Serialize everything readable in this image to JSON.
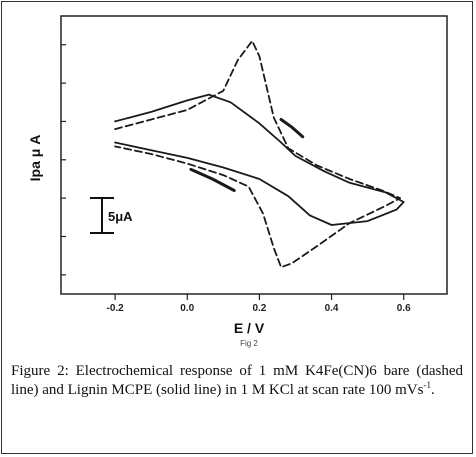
{
  "chart_data": {
    "type": "line",
    "xlabel": "E / V",
    "ylabel": "Ipa μ A",
    "xlim": [
      -0.35,
      0.72
    ],
    "x_ticks": [
      "-0.2",
      "0.0",
      "0.2",
      "0.4",
      "0.6"
    ],
    "x_tick_values": [
      -0.2,
      0.0,
      0.2,
      0.4,
      0.6
    ],
    "scale_bar_label": "5μA",
    "panel_label": "Fig 2",
    "series": [
      {
        "style": "dashed",
        "color": "#1a1a1a",
        "points": [
          [
            -0.2,
            5.6
          ],
          [
            -0.1,
            6.1
          ],
          [
            0.0,
            6.6
          ],
          [
            0.1,
            7.6
          ],
          [
            0.14,
            9.2
          ],
          [
            0.18,
            10.2
          ],
          [
            0.2,
            9.4
          ],
          [
            0.24,
            6.2
          ],
          [
            0.28,
            4.6
          ],
          [
            0.36,
            3.7
          ],
          [
            0.45,
            3.0
          ],
          [
            0.54,
            2.4
          ],
          [
            0.59,
            2.0
          ],
          [
            0.55,
            1.6
          ],
          [
            0.45,
            0.7
          ],
          [
            0.36,
            -0.5
          ],
          [
            0.29,
            -1.4
          ],
          [
            0.26,
            -1.6
          ],
          [
            0.24,
            -0.6
          ],
          [
            0.21,
            1.2
          ],
          [
            0.17,
            2.6
          ],
          [
            0.1,
            3.2
          ],
          [
            0.0,
            3.8
          ],
          [
            -0.1,
            4.3
          ],
          [
            -0.2,
            4.7
          ]
        ]
      },
      {
        "style": "solid",
        "color": "#1a1a1a",
        "points": [
          [
            -0.2,
            6.0
          ],
          [
            -0.1,
            6.5
          ],
          [
            0.0,
            7.1
          ],
          [
            0.06,
            7.4
          ],
          [
            0.12,
            7.0
          ],
          [
            0.2,
            5.9
          ],
          [
            0.26,
            4.9
          ],
          [
            0.3,
            4.2
          ],
          [
            0.38,
            3.4
          ],
          [
            0.45,
            2.8
          ],
          [
            0.55,
            2.3
          ],
          [
            0.6,
            1.8
          ],
          [
            0.58,
            1.4
          ],
          [
            0.5,
            0.8
          ],
          [
            0.4,
            0.6
          ],
          [
            0.34,
            1.1
          ],
          [
            0.28,
            2.1
          ],
          [
            0.2,
            3.0
          ],
          [
            0.1,
            3.6
          ],
          [
            0.0,
            4.1
          ],
          [
            -0.1,
            4.5
          ],
          [
            -0.2,
            4.9
          ]
        ]
      },
      {
        "style": "solid-bold",
        "color": "#1a1a1a",
        "points": [
          [
            0.26,
            6.1
          ],
          [
            0.29,
            5.7
          ],
          [
            0.32,
            5.2
          ]
        ]
      },
      {
        "style": "solid-bold",
        "color": "#1a1a1a",
        "points": [
          [
            0.01,
            3.5
          ],
          [
            0.07,
            3.0
          ],
          [
            0.13,
            2.4
          ]
        ]
      }
    ]
  },
  "caption": {
    "label": "Figure 2:",
    "text": " Electrochemical response of 1 mM K4Fe(CN)6 bare (dashed line) and Lignin MCPE (solid line) in 1 M KCl at scan rate 100 mVs",
    "superscript": "-1",
    "end": "."
  }
}
